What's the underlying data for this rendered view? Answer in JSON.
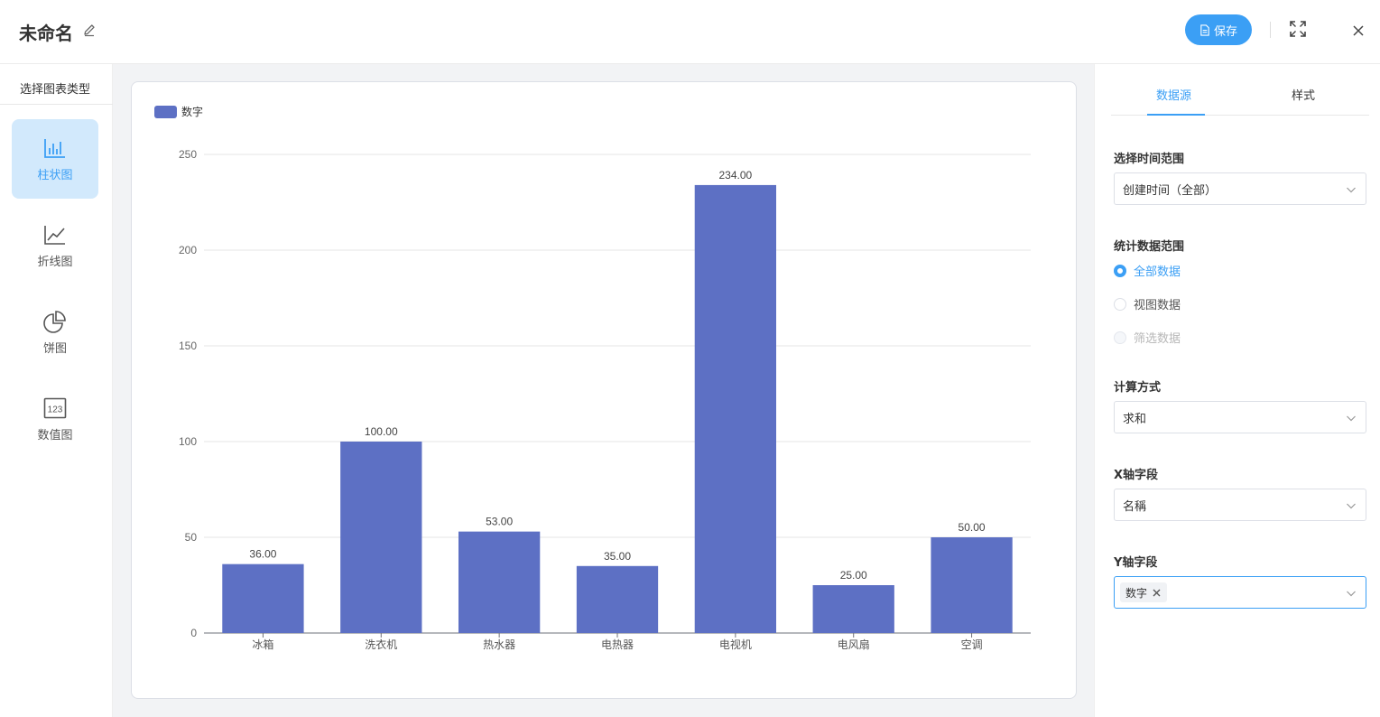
{
  "header": {
    "title": "未命名",
    "save_label": "保存"
  },
  "left_panel": {
    "title": "选择图表类型",
    "types": [
      {
        "label": "柱状图",
        "icon": "bar-chart-icon",
        "active": true
      },
      {
        "label": "折线图",
        "icon": "line-chart-icon",
        "active": false
      },
      {
        "label": "饼图",
        "icon": "pie-chart-icon",
        "active": false
      },
      {
        "label": "数值图",
        "icon": "number-chart-icon",
        "active": false
      }
    ]
  },
  "right_panel": {
    "tabs": [
      {
        "label": "数据源",
        "active": true
      },
      {
        "label": "样式",
        "active": false
      }
    ],
    "time_range": {
      "label": "选择时间范围",
      "value": "创建时间（全部）"
    },
    "data_scope": {
      "label": "统计数据范围",
      "options": [
        {
          "label": "全部数据",
          "state": "checked"
        },
        {
          "label": "视图数据",
          "state": "unchecked"
        },
        {
          "label": "筛选数据",
          "state": "disabled"
        }
      ]
    },
    "calc_method": {
      "label": "计算方式",
      "value": "求和"
    },
    "x_field": {
      "label": "X轴字段",
      "value": "名稱"
    },
    "y_field": {
      "label": "Y轴字段",
      "tags": [
        "数字"
      ]
    }
  },
  "colors": {
    "accent": "#3b9ff5",
    "bar": "#5d70c4"
  },
  "chart_data": {
    "type": "bar",
    "categories": [
      "冰箱",
      "洗衣机",
      "热水器",
      "电热器",
      "电视机",
      "电风扇",
      "空调"
    ],
    "series": [
      {
        "name": "数字",
        "values": [
          36,
          100,
          53,
          35,
          234,
          25,
          50
        ]
      }
    ],
    "data_labels": [
      "36.00",
      "100.00",
      "53.00",
      "35.00",
      "234.00",
      "25.00",
      "50.00"
    ],
    "yticks": [
      0,
      50,
      100,
      150,
      200,
      250
    ],
    "ylim": [
      0,
      250
    ],
    "grid": true,
    "legend": "top-left"
  }
}
